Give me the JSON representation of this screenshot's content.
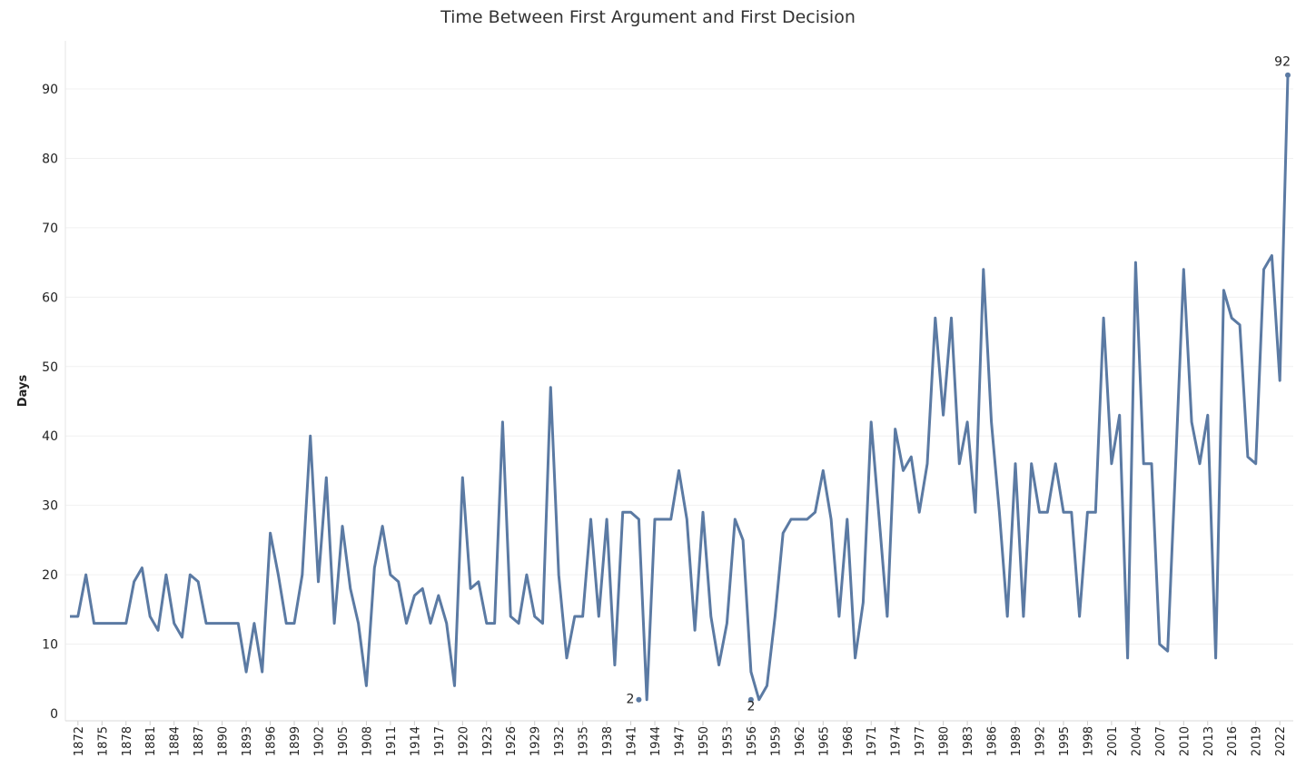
{
  "chart_data": {
    "type": "line",
    "title": "Time Between First Argument and First Decision",
    "xlabel": "",
    "ylabel": "Days",
    "ylim": [
      0,
      96
    ],
    "yticks": [
      0,
      10,
      20,
      30,
      40,
      50,
      60,
      70,
      80,
      90
    ],
    "xlim": [
      1871,
      2023
    ],
    "xticks": [
      1872,
      1875,
      1878,
      1881,
      1884,
      1887,
      1890,
      1893,
      1896,
      1899,
      1902,
      1905,
      1908,
      1911,
      1914,
      1917,
      1920,
      1923,
      1926,
      1929,
      1932,
      1935,
      1938,
      1941,
      1944,
      1947,
      1950,
      1953,
      1956,
      1959,
      1962,
      1965,
      1968,
      1971,
      1974,
      1977,
      1980,
      1983,
      1986,
      1989,
      1992,
      1995,
      1998,
      2001,
      2004,
      2007,
      2010,
      2013,
      2016,
      2019,
      2022
    ],
    "grid": "horizontal",
    "color": "#5b7aa3",
    "series": [
      {
        "name": "",
        "x": [
          1871,
          1872,
          1873,
          1874,
          1875,
          1876,
          1877,
          1878,
          1879,
          1880,
          1881,
          1882,
          1883,
          1884,
          1885,
          1886,
          1887,
          1888,
          1889,
          1890,
          1891,
          1892,
          1893,
          1894,
          1895,
          1896,
          1897,
          1898,
          1899,
          1900,
          1901,
          1902,
          1903,
          1904,
          1905,
          1906,
          1907,
          1908,
          1909,
          1910,
          1911,
          1912,
          1913,
          1914,
          1915,
          1916,
          1917,
          1918,
          1919,
          1920,
          1921,
          1922,
          1923,
          1924,
          1925,
          1926,
          1927,
          1928,
          1929,
          1930,
          1931,
          1932,
          1933,
          1934,
          1935,
          1936,
          1937,
          1938,
          1939,
          1940,
          1941,
          1942,
          1943,
          1944,
          1945,
          1946,
          1947,
          1948,
          1949,
          1950,
          1951,
          1952,
          1953,
          1954,
          1955,
          1956,
          1957,
          1958,
          1959,
          1960,
          1961,
          1962,
          1963,
          1964,
          1965,
          1966,
          1967,
          1968,
          1969,
          1970,
          1971,
          1972,
          1973,
          1974,
          1975,
          1976,
          1977,
          1978,
          1979,
          1980,
          1981,
          1982,
          1983,
          1984,
          1985,
          1986,
          1987,
          1988,
          1989,
          1990,
          1991,
          1992,
          1993,
          1994,
          1995,
          1996,
          1997,
          1998,
          1999,
          2000,
          2001,
          2002,
          2003,
          2004,
          2005,
          2006,
          2007,
          2008,
          2009,
          2010,
          2011,
          2012,
          2013,
          2014,
          2015,
          2016,
          2017,
          2018,
          2019,
          2020,
          2021,
          2022,
          2023
        ],
        "y": [
          14,
          14,
          20,
          13,
          13,
          13,
          13,
          13,
          19,
          21,
          14,
          12,
          20,
          13,
          11,
          20,
          19,
          13,
          13,
          13,
          13,
          13,
          6,
          13,
          6,
          26,
          20,
          13,
          13,
          20,
          40,
          19,
          34,
          13,
          27,
          18,
          13,
          4,
          21,
          27,
          20,
          19,
          13,
          17,
          18,
          13,
          17,
          13,
          4,
          34,
          18,
          19,
          13,
          13,
          42,
          14,
          13,
          20,
          14,
          13,
          47,
          20,
          8,
          14,
          14,
          28,
          14,
          28,
          7,
          29,
          29,
          28,
          2,
          28,
          28,
          28,
          35,
          28,
          12,
          29,
          14,
          7,
          13,
          28,
          25,
          6,
          2,
          4,
          14,
          26,
          28,
          28,
          28,
          29,
          35,
          28,
          14,
          28,
          8,
          16,
          42,
          28,
          14,
          41,
          35,
          37,
          29,
          36,
          57,
          43,
          57,
          36,
          42,
          29,
          64,
          42,
          29,
          14,
          36,
          14,
          36,
          29,
          29,
          36,
          29,
          29,
          14,
          29,
          29,
          57,
          36,
          43,
          8,
          65,
          36,
          36,
          10,
          9,
          36,
          64,
          42,
          36,
          43,
          8,
          61,
          57,
          56,
          37,
          36,
          64,
          66,
          48,
          92
        ]
      }
    ],
    "annotations": [
      {
        "x": 1942,
        "y": 2,
        "label": "2",
        "position": "left"
      },
      {
        "x": 1956,
        "y": 2,
        "label": "2",
        "position": "below"
      },
      {
        "x": 2023,
        "y": 92,
        "label": "92",
        "position": "above"
      }
    ]
  }
}
